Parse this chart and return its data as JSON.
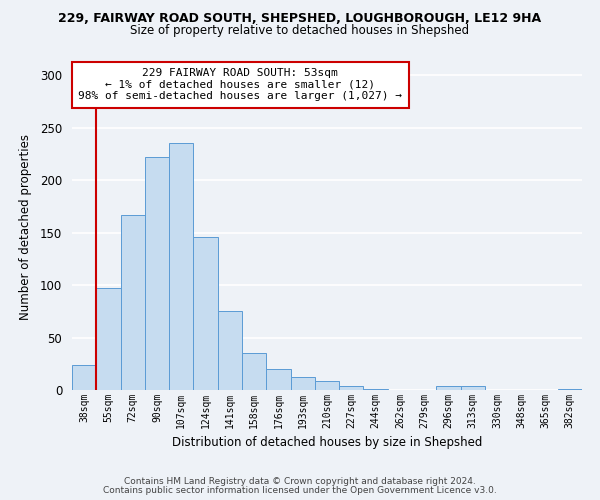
{
  "title_main": "229, FAIRWAY ROAD SOUTH, SHEPSHED, LOUGHBOROUGH, LE12 9HA",
  "title_sub": "Size of property relative to detached houses in Shepshed",
  "xlabel": "Distribution of detached houses by size in Shepshed",
  "ylabel": "Number of detached properties",
  "bar_labels": [
    "38sqm",
    "55sqm",
    "72sqm",
    "90sqm",
    "107sqm",
    "124sqm",
    "141sqm",
    "158sqm",
    "176sqm",
    "193sqm",
    "210sqm",
    "227sqm",
    "244sqm",
    "262sqm",
    "279sqm",
    "296sqm",
    "313sqm",
    "330sqm",
    "348sqm",
    "365sqm",
    "382sqm"
  ],
  "bar_values": [
    24,
    97,
    167,
    222,
    236,
    146,
    75,
    35,
    20,
    12,
    9,
    4,
    1,
    0,
    0,
    4,
    4,
    0,
    0,
    0,
    1
  ],
  "bar_color": "#c6dcf0",
  "bar_edge_color": "#5b9bd5",
  "annotation_line1": "229 FAIRWAY ROAD SOUTH: 53sqm",
  "annotation_line2": "← 1% of detached houses are smaller (12)",
  "annotation_line3": "98% of semi-detached houses are larger (1,027) →",
  "annotation_box_facecolor": "#ffffff",
  "annotation_box_edgecolor": "#cc0000",
  "redline_x": 0.5,
  "ylim": [
    0,
    310
  ],
  "yticks": [
    0,
    50,
    100,
    150,
    200,
    250,
    300
  ],
  "footer_line1": "Contains HM Land Registry data © Crown copyright and database right 2024.",
  "footer_line2": "Contains public sector information licensed under the Open Government Licence v3.0.",
  "bg_color": "#eef2f7"
}
